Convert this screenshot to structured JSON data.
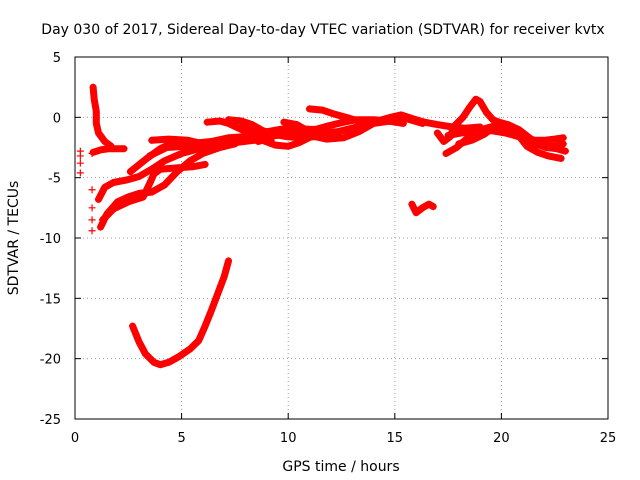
{
  "chart_data": {
    "type": "scatter",
    "title": "Day 030 of 2017, Sidereal Day-to-day VTEC variation (SDTVAR) for receiver kvtx",
    "xlabel": "GPS time / hours",
    "ylabel": "SDTVAR / TECUs",
    "xlim": [
      0,
      25
    ],
    "ylim": [
      -25,
      5
    ],
    "xticks": [
      0,
      5,
      10,
      15,
      20,
      25
    ],
    "yticks": [
      -25,
      -20,
      -15,
      -10,
      -5,
      0,
      5
    ],
    "grid": true,
    "marker": "+",
    "color": "#ff0000",
    "series": [
      {
        "name": "track-1",
        "points": [
          [
            0.85,
            -2.9
          ],
          [
            1.2,
            -2.7
          ],
          [
            1.6,
            -2.6
          ],
          [
            2.0,
            -2.6
          ],
          [
            2.3,
            -2.6
          ]
        ]
      },
      {
        "name": "track-2",
        "points": [
          [
            0.85,
            2.5
          ],
          [
            0.9,
            1.5
          ],
          [
            1.0,
            0.5
          ],
          [
            1.0,
            -0.5
          ],
          [
            1.1,
            -1.3
          ],
          [
            1.4,
            -2.0
          ],
          [
            1.7,
            -2.4
          ]
        ]
      },
      {
        "name": "track-3",
        "points": [
          [
            1.1,
            -6.8
          ],
          [
            1.4,
            -5.8
          ],
          [
            1.8,
            -5.4
          ],
          [
            2.4,
            -5.2
          ],
          [
            3.0,
            -4.9
          ],
          [
            3.6,
            -4.3
          ],
          [
            4.2,
            -3.6
          ],
          [
            5.0,
            -3.0
          ],
          [
            5.8,
            -2.6
          ],
          [
            6.5,
            -2.3
          ]
        ]
      },
      {
        "name": "track-4",
        "points": [
          [
            1.2,
            -9.1
          ],
          [
            1.5,
            -8.0
          ],
          [
            2.0,
            -7.0
          ],
          [
            2.5,
            -6.6
          ],
          [
            3.0,
            -6.3
          ],
          [
            3.6,
            -6.2
          ],
          [
            4.2,
            -5.6
          ],
          [
            4.8,
            -4.5
          ],
          [
            5.4,
            -3.6
          ],
          [
            6.0,
            -3.0
          ],
          [
            6.8,
            -2.5
          ],
          [
            7.5,
            -2.2
          ]
        ]
      },
      {
        "name": "track-5",
        "points": [
          [
            1.3,
            -8.5
          ],
          [
            1.8,
            -7.6
          ],
          [
            2.5,
            -7.0
          ],
          [
            3.2,
            -6.6
          ],
          [
            3.5,
            -5.5
          ],
          [
            3.7,
            -4.7
          ],
          [
            4.0,
            -4.3
          ],
          [
            4.7,
            -4.2
          ],
          [
            5.5,
            -4.1
          ],
          [
            6.1,
            -3.9
          ]
        ]
      },
      {
        "name": "track-6",
        "points": [
          [
            2.6,
            -4.5
          ],
          [
            3.3,
            -3.5
          ],
          [
            4.0,
            -2.6
          ],
          [
            4.6,
            -2.1
          ],
          [
            5.2,
            -2.0
          ],
          [
            5.8,
            -2.1
          ],
          [
            6.4,
            -2.0
          ],
          [
            7.2,
            -1.7
          ],
          [
            8.0,
            -1.6
          ]
        ]
      },
      {
        "name": "track-7",
        "points": [
          [
            3.5,
            -3.2
          ],
          [
            4.3,
            -2.5
          ],
          [
            5.2,
            -2.4
          ],
          [
            6.0,
            -2.5
          ],
          [
            6.8,
            -2.2
          ],
          [
            7.8,
            -1.8
          ],
          [
            8.6,
            -1.6
          ],
          [
            9.5,
            -1.5
          ]
        ]
      },
      {
        "name": "track-8",
        "points": [
          [
            3.6,
            -1.9
          ],
          [
            4.4,
            -1.8
          ],
          [
            5.3,
            -1.9
          ],
          [
            6.0,
            -2.2
          ],
          [
            6.7,
            -2.4
          ],
          [
            7.5,
            -2.1
          ],
          [
            8.4,
            -1.9
          ],
          [
            9.2,
            -1.9
          ]
        ]
      },
      {
        "name": "track-9",
        "points": [
          [
            6.2,
            -0.4
          ],
          [
            6.8,
            -0.3
          ],
          [
            7.2,
            -0.5
          ],
          [
            7.8,
            -1.0
          ],
          [
            8.3,
            -1.4
          ],
          [
            8.8,
            -1.9
          ],
          [
            9.4,
            -2.3
          ],
          [
            10.0,
            -2.4
          ],
          [
            10.5,
            -2.1
          ],
          [
            11.2,
            -1.5
          ]
        ]
      },
      {
        "name": "track-10",
        "points": [
          [
            7.2,
            -0.2
          ],
          [
            7.8,
            -0.3
          ],
          [
            8.3,
            -0.6
          ],
          [
            8.8,
            -1.1
          ],
          [
            9.3,
            -1.4
          ],
          [
            9.9,
            -1.6
          ],
          [
            10.6,
            -1.7
          ],
          [
            11.3,
            -1.6
          ],
          [
            11.9,
            -1.3
          ]
        ]
      },
      {
        "name": "track-11",
        "points": [
          [
            7.8,
            -0.8
          ],
          [
            8.4,
            -1.0
          ],
          [
            9.0,
            -1.2
          ],
          [
            9.6,
            -1.0
          ],
          [
            10.3,
            -0.9
          ],
          [
            11.0,
            -1.0
          ],
          [
            11.6,
            -1.3
          ],
          [
            12.3,
            -1.2
          ],
          [
            13.0,
            -0.9
          ],
          [
            13.6,
            -0.6
          ]
        ]
      },
      {
        "name": "track-12",
        "points": [
          [
            8.6,
            -2.0
          ],
          [
            9.2,
            -1.6
          ],
          [
            9.8,
            -1.2
          ],
          [
            10.4,
            -1.2
          ],
          [
            11.0,
            -1.5
          ],
          [
            11.8,
            -1.8
          ],
          [
            12.6,
            -1.7
          ],
          [
            13.3,
            -1.2
          ],
          [
            14.0,
            -0.5
          ],
          [
            14.8,
            -0.3
          ]
        ]
      },
      {
        "name": "track-13",
        "points": [
          [
            9.8,
            -0.4
          ],
          [
            10.4,
            -0.6
          ],
          [
            10.8,
            -1.0
          ],
          [
            11.3,
            -1.0
          ],
          [
            11.9,
            -0.7
          ],
          [
            12.6,
            -0.4
          ],
          [
            13.2,
            -0.2
          ],
          [
            14.0,
            -0.2
          ],
          [
            14.7,
            -0.3
          ],
          [
            15.4,
            -0.5
          ]
        ]
      },
      {
        "name": "track-14",
        "points": [
          [
            11.0,
            0.7
          ],
          [
            11.6,
            0.6
          ],
          [
            12.1,
            0.3
          ],
          [
            12.7,
            0.0
          ],
          [
            13.3,
            -0.3
          ],
          [
            14.0,
            -0.4
          ],
          [
            14.6,
            -0.3
          ],
          [
            15.2,
            0.1
          ],
          [
            15.7,
            -0.2
          ],
          [
            16.3,
            -0.5
          ]
        ]
      },
      {
        "name": "track-15",
        "points": [
          [
            13.6,
            -0.5
          ],
          [
            14.2,
            -0.3
          ],
          [
            14.8,
            0.0
          ],
          [
            15.3,
            0.2
          ],
          [
            15.8,
            -0.1
          ],
          [
            16.4,
            -0.4
          ],
          [
            17.0,
            -0.6
          ],
          [
            17.7,
            -0.8
          ],
          [
            18.3,
            -0.9
          ],
          [
            19.0,
            -0.8
          ]
        ]
      },
      {
        "name": "track-16",
        "points": [
          [
            15.8,
            -7.2
          ],
          [
            16.0,
            -7.9
          ],
          [
            16.3,
            -7.5
          ],
          [
            16.6,
            -7.2
          ],
          [
            16.8,
            -7.4
          ]
        ]
      },
      {
        "name": "track-17",
        "points": [
          [
            17.0,
            -1.3
          ],
          [
            17.3,
            -2.0
          ],
          [
            17.6,
            -1.6
          ],
          [
            17.8,
            -0.7
          ],
          [
            18.2,
            0.0
          ],
          [
            18.5,
            0.8
          ],
          [
            18.8,
            1.5
          ],
          [
            19.0,
            1.3
          ],
          [
            19.3,
            0.4
          ],
          [
            19.6,
            -0.2
          ],
          [
            19.9,
            -0.4
          ],
          [
            20.3,
            -0.6
          ],
          [
            20.7,
            -1.0
          ],
          [
            21.1,
            -1.6
          ],
          [
            21.6,
            -2.2
          ],
          [
            22.1,
            -2.5
          ],
          [
            22.6,
            -2.6
          ],
          [
            23.0,
            -2.8
          ]
        ]
      },
      {
        "name": "track-18",
        "points": [
          [
            17.4,
            -3.0
          ],
          [
            17.9,
            -2.5
          ],
          [
            18.5,
            -1.6
          ],
          [
            19.1,
            -1.0
          ],
          [
            19.7,
            -0.7
          ],
          [
            20.3,
            -0.9
          ],
          [
            20.8,
            -1.5
          ],
          [
            21.2,
            -2.4
          ],
          [
            21.7,
            -2.9
          ],
          [
            22.2,
            -3.2
          ],
          [
            22.8,
            -3.4
          ]
        ]
      },
      {
        "name": "track-19",
        "points": [
          [
            17.5,
            -1.5
          ],
          [
            18.1,
            -1.3
          ],
          [
            18.8,
            -1.2
          ],
          [
            19.5,
            -1.1
          ],
          [
            20.2,
            -1.3
          ],
          [
            20.8,
            -1.6
          ],
          [
            21.4,
            -1.9
          ],
          [
            22.0,
            -1.9
          ],
          [
            22.5,
            -1.8
          ],
          [
            22.9,
            -1.7
          ]
        ]
      },
      {
        "name": "track-20",
        "points": [
          [
            18.0,
            -2.2
          ],
          [
            18.6,
            -1.9
          ],
          [
            19.2,
            -1.4
          ],
          [
            19.8,
            -0.6
          ],
          [
            20.3,
            -0.6
          ],
          [
            20.8,
            -1.0
          ],
          [
            21.4,
            -1.8
          ],
          [
            22.0,
            -2.3
          ],
          [
            22.5,
            -2.4
          ],
          [
            22.9,
            -2.2
          ]
        ]
      },
      {
        "name": "track-21",
        "points": [
          [
            2.7,
            -17.3
          ],
          [
            3.0,
            -18.6
          ],
          [
            3.3,
            -19.6
          ],
          [
            3.7,
            -20.3
          ],
          [
            4.0,
            -20.5
          ],
          [
            4.4,
            -20.3
          ],
          [
            4.9,
            -19.8
          ],
          [
            5.4,
            -19.2
          ],
          [
            5.8,
            -18.5
          ],
          [
            6.1,
            -17.3
          ],
          [
            6.4,
            -16.0
          ],
          [
            6.7,
            -14.6
          ],
          [
            7.0,
            -13.2
          ],
          [
            7.2,
            -11.9
          ]
        ]
      }
    ],
    "scatter_points": [
      [
        0.25,
        -2.8
      ],
      [
        0.25,
        -3.2
      ],
      [
        0.25,
        -3.8
      ],
      [
        0.25,
        -4.6
      ],
      [
        0.8,
        -3.0
      ],
      [
        0.8,
        -6.0
      ],
      [
        0.8,
        -7.5
      ],
      [
        0.8,
        -8.5
      ],
      [
        0.8,
        -9.4
      ]
    ]
  }
}
